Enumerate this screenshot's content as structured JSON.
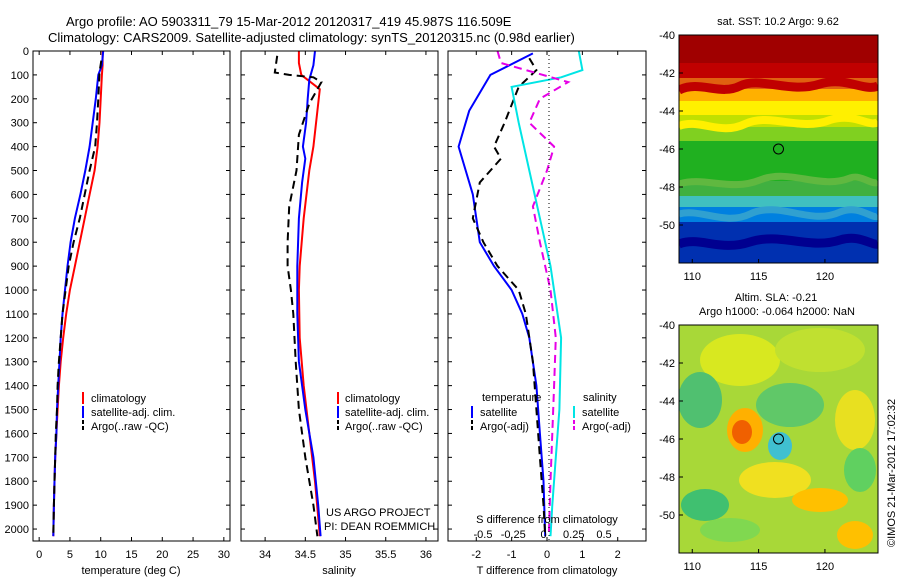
{
  "title": {
    "line1": "Argo profile: AO 5903311_79 15-Mar-2012 20120317_419 45.987S 116.509E",
    "line2": "Climatology: CARS2009. Satellite-adjusted climatology: synTS_20120315.nc (0.98d earlier)"
  },
  "colors": {
    "climatology": "#ff0000",
    "satellite": "#0000ff",
    "argo": "#000000",
    "salinity_satellite": "#00e5e5",
    "salinity_argo": "#e600e6"
  },
  "depth_ticks": [
    "0",
    "100",
    "200",
    "300",
    "400",
    "500",
    "600",
    "700",
    "800",
    "900",
    "1000",
    "1100",
    "1200",
    "1300",
    "1400",
    "1500",
    "1600",
    "1700",
    "1800",
    "1900",
    "2000"
  ],
  "chart_data": [
    {
      "type": "line",
      "id": "temperature",
      "xlabel": "temperature (deg C)",
      "ylabel": "",
      "xlim": [
        -1,
        31
      ],
      "ylim": [
        2050,
        0
      ],
      "xticks": [
        "0",
        "5",
        "10",
        "15",
        "20",
        "25",
        "30"
      ],
      "legend": {
        "placement": "bottom-right",
        "items": [
          "climatology",
          "satellite-adj. clim.",
          "Argo(..raw -QC)"
        ]
      },
      "series": [
        {
          "name": "climatology",
          "style": "solid",
          "color": "#ff0000",
          "points": [
            [
              10.3,
              0
            ],
            [
              10.3,
              60
            ],
            [
              10.2,
              100
            ],
            [
              10.0,
              200
            ],
            [
              9.8,
              300
            ],
            [
              9.5,
              400
            ],
            [
              9.0,
              500
            ],
            [
              8.2,
              600
            ],
            [
              7.4,
              700
            ],
            [
              6.6,
              800
            ],
            [
              5.8,
              900
            ],
            [
              5.0,
              1000
            ],
            [
              4.4,
              1100
            ],
            [
              3.9,
              1200
            ],
            [
              3.5,
              1300
            ],
            [
              3.2,
              1400
            ],
            [
              3.0,
              1500
            ],
            [
              2.8,
              1600
            ],
            [
              2.6,
              1700
            ],
            [
              2.5,
              1800
            ],
            [
              2.4,
              1900
            ],
            [
              2.3,
              2030
            ]
          ]
        },
        {
          "name": "satellite-adj. clim.",
          "style": "solid",
          "color": "#0000ff",
          "points": [
            [
              10.4,
              0
            ],
            [
              10.2,
              60
            ],
            [
              9.6,
              100
            ],
            [
              9.2,
              200
            ],
            [
              8.7,
              300
            ],
            [
              8.2,
              400
            ],
            [
              7.5,
              500
            ],
            [
              6.7,
              600
            ],
            [
              5.8,
              700
            ],
            [
              5.1,
              800
            ],
            [
              4.6,
              900
            ],
            [
              4.2,
              1000
            ],
            [
              3.8,
              1100
            ],
            [
              3.5,
              1200
            ],
            [
              3.3,
              1300
            ],
            [
              3.1,
              1400
            ],
            [
              2.9,
              1500
            ],
            [
              2.8,
              1600
            ],
            [
              2.6,
              1700
            ],
            [
              2.5,
              1800
            ],
            [
              2.4,
              1900
            ],
            [
              2.3,
              2030
            ]
          ]
        },
        {
          "name": "Argo(..raw -QC)",
          "style": "dashed",
          "color": "#000000",
          "points": [
            [
              10.1,
              40
            ],
            [
              9.8,
              90
            ],
            [
              9.6,
              200
            ],
            [
              9.4,
              300
            ],
            [
              9.1,
              400
            ],
            [
              8.2,
              500
            ],
            [
              7.4,
              600
            ],
            [
              6.6,
              700
            ],
            [
              5.6,
              800
            ],
            [
              4.8,
              900
            ],
            [
              4.3,
              1000
            ],
            [
              3.8,
              1100
            ],
            [
              3.5,
              1200
            ],
            [
              3.2,
              1300
            ],
            [
              3.0,
              1400
            ],
            [
              2.9,
              1500
            ],
            [
              2.7,
              1600
            ],
            [
              2.6,
              1700
            ],
            [
              2.5,
              1800
            ],
            [
              2.4,
              1900
            ],
            [
              2.3,
              2030
            ]
          ]
        }
      ]
    },
    {
      "type": "line",
      "id": "salinity",
      "xlabel": "salinity",
      "ylabel": "",
      "xlim": [
        33.7,
        36.15
      ],
      "ylim": [
        2050,
        0
      ],
      "xticks": [
        "34",
        "34.5",
        "35",
        "35.5",
        "36"
      ],
      "legend": {
        "placement": "bottom-right",
        "items": [
          "climatology",
          "satellite-adj. clim.",
          "Argo(..raw -QC)"
        ]
      },
      "series": [
        {
          "name": "climatology",
          "style": "solid",
          "color": "#ff0000",
          "points": [
            [
              34.42,
              0
            ],
            [
              34.42,
              50
            ],
            [
              34.45,
              100
            ],
            [
              34.68,
              160
            ],
            [
              34.65,
              250
            ],
            [
              34.6,
              400
            ],
            [
              34.55,
              500
            ],
            [
              34.48,
              700
            ],
            [
              34.43,
              900
            ],
            [
              34.42,
              1000
            ],
            [
              34.43,
              1200
            ],
            [
              34.48,
              1400
            ],
            [
              34.55,
              1600
            ],
            [
              34.62,
              1800
            ],
            [
              34.66,
              1950
            ],
            [
              34.68,
              2030
            ]
          ]
        },
        {
          "name": "satellite-adj. clim.",
          "style": "solid",
          "color": "#0000ff",
          "points": [
            [
              34.62,
              0
            ],
            [
              34.6,
              60
            ],
            [
              34.55,
              120
            ],
            [
              34.53,
              200
            ],
            [
              34.51,
              300
            ],
            [
              34.47,
              400
            ],
            [
              34.5,
              450
            ],
            [
              34.46,
              550
            ],
            [
              34.42,
              700
            ],
            [
              34.4,
              900
            ],
            [
              34.4,
              1100
            ],
            [
              34.42,
              1300
            ],
            [
              34.5,
              1500
            ],
            [
              34.6,
              1700
            ],
            [
              34.66,
              1900
            ],
            [
              34.69,
              2030
            ]
          ]
        },
        {
          "name": "Argo(..raw -QC)",
          "style": "dashed",
          "color": "#000000",
          "points": [
            [
              34.15,
              20
            ],
            [
              34.12,
              90
            ],
            [
              34.3,
              100
            ],
            [
              34.6,
              110
            ],
            [
              34.7,
              130
            ],
            [
              34.55,
              220
            ],
            [
              34.42,
              350
            ],
            [
              34.39,
              500
            ],
            [
              34.3,
              650
            ],
            [
              34.28,
              800
            ],
            [
              34.28,
              900
            ],
            [
              34.32,
              1000
            ],
            [
              34.35,
              1100
            ],
            [
              34.38,
              1300
            ],
            [
              34.42,
              1500
            ],
            [
              34.5,
              1700
            ],
            [
              34.6,
              1900
            ],
            [
              34.65,
              2030
            ]
          ]
        }
      ]
    },
    {
      "type": "line",
      "id": "difference",
      "xlabel": "T difference from climatology",
      "top_xlabel": "S difference from climatology",
      "ylabel": "",
      "xlim": [
        -2.8,
        2.8
      ],
      "ylim": [
        2050,
        0
      ],
      "xticks": [
        "-2",
        "-1",
        "0",
        "1",
        "2"
      ],
      "top_xticks": [
        "-0.5",
        "-0.25",
        "0",
        "0.25",
        "0.5"
      ],
      "legend": {
        "placement": "bottom",
        "temperature_heading": "temperature",
        "salinity_heading": "salinity",
        "items": [
          "satellite",
          "Argo(-adj)",
          "satellite",
          "Argo(-adj)"
        ]
      },
      "series": [
        {
          "name": "satellite",
          "group": "temperature",
          "style": "solid",
          "color": "#0000ff",
          "points": [
            [
              -0.4,
              10
            ],
            [
              -1.6,
              100
            ],
            [
              -2.2,
              250
            ],
            [
              -2.5,
              400
            ],
            [
              -2.3,
              500
            ],
            [
              -2.1,
              600
            ],
            [
              -2.0,
              700
            ],
            [
              -1.9,
              800
            ],
            [
              -1.5,
              900
            ],
            [
              -1.0,
              1000
            ],
            [
              -0.7,
              1100
            ],
            [
              -0.5,
              1200
            ],
            [
              -0.3,
              1400
            ],
            [
              -0.2,
              1600
            ],
            [
              -0.1,
              1800
            ],
            [
              -0.05,
              2030
            ]
          ]
        },
        {
          "name": "Argo(-adj)",
          "group": "temperature",
          "style": "dashed",
          "color": "#000000",
          "points": [
            [
              -0.5,
              30
            ],
            [
              -0.3,
              80
            ],
            [
              -0.8,
              150
            ],
            [
              -1.2,
              300
            ],
            [
              -1.5,
              400
            ],
            [
              -1.3,
              450
            ],
            [
              -1.9,
              550
            ],
            [
              -2.1,
              700
            ],
            [
              -1.8,
              800
            ],
            [
              -1.4,
              900
            ],
            [
              -0.8,
              1000
            ],
            [
              -0.6,
              1100
            ],
            [
              -0.4,
              1300
            ],
            [
              -0.3,
              1500
            ],
            [
              -0.2,
              1700
            ],
            [
              -0.1,
              1900
            ],
            [
              -0.05,
              2030
            ]
          ]
        },
        {
          "name": "satellite",
          "group": "salinity",
          "style": "solid",
          "color": "#00e5e5",
          "points": [
            [
              0.9,
              0
            ],
            [
              1.0,
              80
            ],
            [
              0.4,
              110
            ],
            [
              -1.0,
              150
            ],
            [
              -0.8,
              300
            ],
            [
              -0.5,
              500
            ],
            [
              -0.2,
              700
            ],
            [
              0.1,
              900
            ],
            [
              0.4,
              1200
            ],
            [
              0.35,
              1500
            ],
            [
              0.25,
              1700
            ],
            [
              0.15,
              1900
            ],
            [
              0.1,
              2030
            ]
          ]
        },
        {
          "name": "Argo(-adj)",
          "group": "salinity",
          "style": "dashed",
          "color": "#e600e6",
          "points": [
            [
              -1.4,
              0
            ],
            [
              -1.3,
              50
            ],
            [
              0.6,
              130
            ],
            [
              -0.2,
              200
            ],
            [
              -0.5,
              300
            ],
            [
              0.2,
              400
            ],
            [
              0.0,
              500
            ],
            [
              -0.4,
              650
            ],
            [
              -0.2,
              800
            ],
            [
              0.1,
              1000
            ],
            [
              0.25,
              1200
            ],
            [
              0.2,
              1400
            ],
            [
              0.15,
              1600
            ],
            [
              0.1,
              1800
            ],
            [
              0.05,
              2030
            ]
          ]
        }
      ]
    },
    {
      "type": "heatmap",
      "id": "sst_map",
      "title": "sat. SST: 10.2 Argo: 9.62",
      "xlim": [
        109,
        124
      ],
      "ylim": [
        -52,
        -40
      ],
      "xticks": [
        "110",
        "115",
        "120"
      ],
      "yticks": [
        "-40",
        "-42",
        "-44",
        "-46",
        "-48",
        "-50"
      ],
      "marker": {
        "lon": 116.5,
        "lat": -46.0
      }
    },
    {
      "type": "heatmap",
      "id": "sla_map",
      "title_line1": "Altim. SLA: -0.21",
      "title_line2": "Argo h1000: -0.064 h2000: NaN",
      "xlim": [
        109,
        124
      ],
      "ylim": [
        -52,
        -40
      ],
      "xticks": [
        "110",
        "115",
        "120"
      ],
      "yticks": [
        "-40",
        "-42",
        "-44",
        "-46",
        "-48",
        "-50"
      ],
      "marker": {
        "lon": 116.5,
        "lat": -46.0
      }
    }
  ],
  "notes": {
    "project_line1": "US ARGO PROJECT",
    "project_line2": "PI: DEAN ROEMMICH",
    "side_stamp": "©IMOS 21-Mar-2012 17:02:32"
  }
}
